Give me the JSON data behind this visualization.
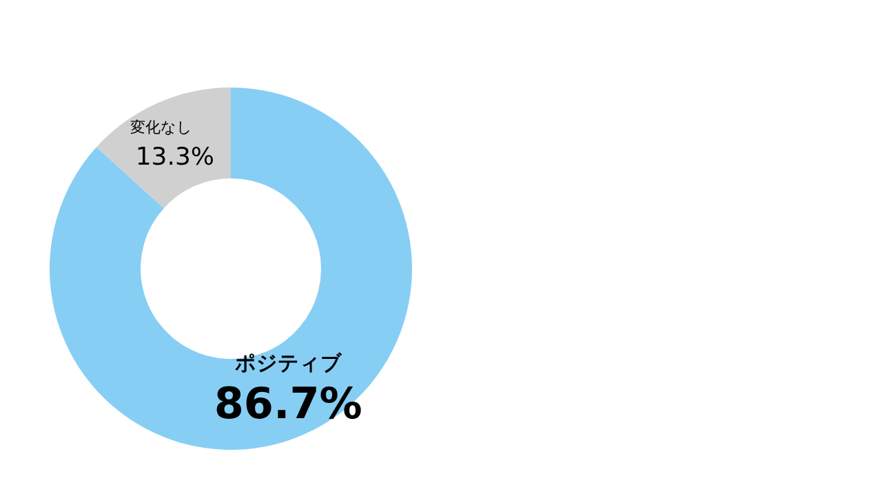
{
  "chart_data": {
    "type": "donut",
    "categories": [
      "ポジティブ",
      "変化なし"
    ],
    "values": [
      86.7,
      13.3
    ],
    "colors": [
      "#87cef5",
      "#d0d0d0"
    ],
    "value_labels": [
      "86.7%",
      "13.3%"
    ]
  }
}
